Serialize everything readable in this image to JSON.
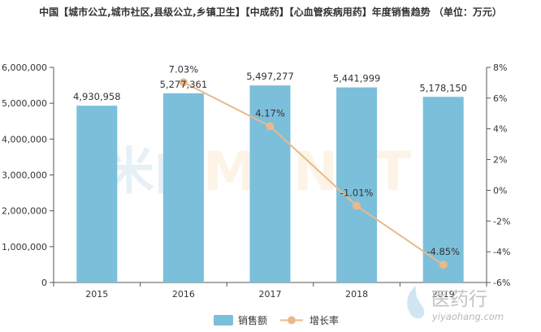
{
  "chart_data": {
    "type": "bar",
    "title": "中国【城市公立,城市社区,县级公立,乡镇卫生】【中成药】【心血管疾病用药】年度销售趋势 （单位：万元）",
    "categories": [
      "2015",
      "2016",
      "2017",
      "2018",
      "2019"
    ],
    "series": [
      {
        "name": "销售额",
        "type": "bar",
        "axis": "left",
        "values": [
          4930958,
          5277361,
          5497277,
          5441999,
          5178150
        ],
        "labels": [
          "4,930,958",
          "5,277,361",
          "5,497,277",
          "5,441,999",
          "5,178,150"
        ]
      },
      {
        "name": "增长率",
        "type": "line",
        "axis": "right",
        "values": [
          null,
          7.03,
          4.17,
          -1.01,
          -4.85
        ],
        "labels": [
          "",
          "7.03%",
          "4.17%",
          "-1.01%",
          "-4.85%"
        ]
      }
    ],
    "y_left": {
      "ylim": [
        0,
        6000000
      ],
      "ticks": [
        "0",
        "1,000,000",
        "2,000,000",
        "3,000,000",
        "4,000,000",
        "5,000,000",
        "6,000,000"
      ]
    },
    "y_right": {
      "ylim": [
        -6,
        8
      ],
      "ticks": [
        "-6%",
        "-4%",
        "-2%",
        "0%",
        "2%",
        "4%",
        "6%",
        "8%"
      ]
    },
    "grid": false,
    "legend_position": "bottom-center",
    "colors": {
      "bar": "#7bbfdb",
      "line": "#eab98a",
      "axis": "#555555"
    }
  },
  "watermark": {
    "left": "米内",
    "right": "MENET"
  },
  "logo": {
    "cn": "医药行",
    "en": "yiyaohang.com"
  }
}
